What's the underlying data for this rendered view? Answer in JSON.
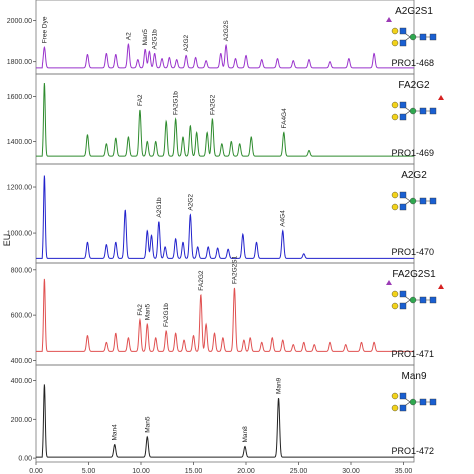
{
  "chart_data": {
    "type": "line",
    "title": "",
    "xlabel": "",
    "ylabel": "EU",
    "xlim": [
      0.0,
      36.0
    ],
    "x_ticks": [
      "0.00",
      "5.00",
      "10.00",
      "15.00",
      "20.00",
      "25.00",
      "30.00",
      "35.00"
    ],
    "x_tick_values": [
      0,
      5,
      10,
      15,
      20,
      25,
      30,
      35
    ],
    "grid": false,
    "panels": [
      {
        "sample": "PRO1-468",
        "glycan": "A2G2S1",
        "color": "#9933cc",
        "y_ticks": [
          "1800.00",
          "2000.00"
        ],
        "y_tick_values": [
          1800,
          2000
        ],
        "ylim": [
          1740,
          2100
        ],
        "baseline": 1770,
        "peaks": [
          {
            "x": 0.8,
            "y": 1870,
            "w": 0.1,
            "label": "Free Dye"
          },
          {
            "x": 4.9,
            "y": 1835,
            "w": 0.1
          },
          {
            "x": 6.7,
            "y": 1840,
            "w": 0.1
          },
          {
            "x": 7.6,
            "y": 1835,
            "w": 0.1
          },
          {
            "x": 8.8,
            "y": 1885,
            "w": 0.1,
            "label": "A2"
          },
          {
            "x": 9.7,
            "y": 1810,
            "w": 0.1
          },
          {
            "x": 10.4,
            "y": 1860,
            "w": 0.1,
            "label": "Man5"
          },
          {
            "x": 10.8,
            "y": 1850,
            "w": 0.1
          },
          {
            "x": 11.3,
            "y": 1840,
            "w": 0.1,
            "label": "A2G1b"
          },
          {
            "x": 12.0,
            "y": 1815,
            "w": 0.1
          },
          {
            "x": 12.7,
            "y": 1820,
            "w": 0.1
          },
          {
            "x": 13.4,
            "y": 1810,
            "w": 0.1
          },
          {
            "x": 14.3,
            "y": 1830,
            "w": 0.1,
            "label": "A2G2"
          },
          {
            "x": 15.2,
            "y": 1820,
            "w": 0.1
          },
          {
            "x": 16.2,
            "y": 1805,
            "w": 0.1
          },
          {
            "x": 17.6,
            "y": 1840,
            "w": 0.1
          },
          {
            "x": 18.1,
            "y": 1880,
            "w": 0.1,
            "label": "A2G2S"
          },
          {
            "x": 19.0,
            "y": 1815,
            "w": 0.1
          },
          {
            "x": 20.0,
            "y": 1830,
            "w": 0.1
          },
          {
            "x": 21.5,
            "y": 1810,
            "w": 0.1
          },
          {
            "x": 23.0,
            "y": 1815,
            "w": 0.1
          },
          {
            "x": 24.5,
            "y": 1805,
            "w": 0.1
          },
          {
            "x": 26.0,
            "y": 1810,
            "w": 0.1
          },
          {
            "x": 28.0,
            "y": 1800,
            "w": 0.1
          },
          {
            "x": 29.8,
            "y": 1815,
            "w": 0.1
          },
          {
            "x": 32.2,
            "y": 1840,
            "w": 0.1
          }
        ]
      },
      {
        "sample": "PRO1-469",
        "glycan": "FA2G2",
        "color": "#2e8b2e",
        "y_ticks": [
          "1400.00",
          "1600.00"
        ],
        "y_tick_values": [
          1400,
          1600
        ],
        "ylim": [
          1300,
          1700
        ],
        "baseline": 1335,
        "peaks": [
          {
            "x": 0.8,
            "y": 1660,
            "w": 0.08
          },
          {
            "x": 4.9,
            "y": 1430,
            "w": 0.1
          },
          {
            "x": 6.7,
            "y": 1390,
            "w": 0.1
          },
          {
            "x": 7.6,
            "y": 1415,
            "w": 0.1
          },
          {
            "x": 8.8,
            "y": 1420,
            "w": 0.1
          },
          {
            "x": 9.9,
            "y": 1540,
            "w": 0.1,
            "label": "FA2"
          },
          {
            "x": 10.6,
            "y": 1400,
            "w": 0.1
          },
          {
            "x": 11.4,
            "y": 1400,
            "w": 0.1
          },
          {
            "x": 12.4,
            "y": 1490,
            "w": 0.1
          },
          {
            "x": 13.3,
            "y": 1500,
            "w": 0.1,
            "label": "FA2G1b"
          },
          {
            "x": 14.0,
            "y": 1420,
            "w": 0.1
          },
          {
            "x": 14.7,
            "y": 1470,
            "w": 0.1
          },
          {
            "x": 15.3,
            "y": 1440,
            "w": 0.1
          },
          {
            "x": 16.3,
            "y": 1440,
            "w": 0.1
          },
          {
            "x": 16.8,
            "y": 1500,
            "w": 0.1,
            "label": "FA2G2"
          },
          {
            "x": 17.7,
            "y": 1390,
            "w": 0.1
          },
          {
            "x": 18.6,
            "y": 1400,
            "w": 0.1
          },
          {
            "x": 19.4,
            "y": 1390,
            "w": 0.1
          },
          {
            "x": 20.5,
            "y": 1420,
            "w": 0.1
          },
          {
            "x": 23.6,
            "y": 1440,
            "w": 0.1,
            "label": "FA4G4"
          },
          {
            "x": 26.0,
            "y": 1360,
            "w": 0.1
          }
        ]
      },
      {
        "sample": "PRO1-470",
        "glycan": "A2G2",
        "color": "#2222cc",
        "y_ticks": [
          "1000.00",
          "1200.00"
        ],
        "y_tick_values": [
          1000,
          1200
        ],
        "ylim": [
          870,
          1300
        ],
        "baseline": 890,
        "peaks": [
          {
            "x": 0.8,
            "y": 1250,
            "w": 0.08
          },
          {
            "x": 4.9,
            "y": 960,
            "w": 0.1
          },
          {
            "x": 6.7,
            "y": 950,
            "w": 0.1
          },
          {
            "x": 7.6,
            "y": 960,
            "w": 0.1
          },
          {
            "x": 8.5,
            "y": 1100,
            "w": 0.1
          },
          {
            "x": 10.6,
            "y": 1010,
            "w": 0.1
          },
          {
            "x": 11.0,
            "y": 990,
            "w": 0.1
          },
          {
            "x": 11.7,
            "y": 1050,
            "w": 0.1,
            "label": "A2G1b"
          },
          {
            "x": 12.3,
            "y": 940,
            "w": 0.1
          },
          {
            "x": 13.3,
            "y": 975,
            "w": 0.1
          },
          {
            "x": 14.0,
            "y": 960,
            "w": 0.1
          },
          {
            "x": 14.7,
            "y": 1080,
            "w": 0.1,
            "label": "A2G2"
          },
          {
            "x": 15.4,
            "y": 940,
            "w": 0.1
          },
          {
            "x": 16.4,
            "y": 940,
            "w": 0.1
          },
          {
            "x": 17.3,
            "y": 935,
            "w": 0.1
          },
          {
            "x": 18.3,
            "y": 930,
            "w": 0.1
          },
          {
            "x": 19.7,
            "y": 995,
            "w": 0.1
          },
          {
            "x": 21.0,
            "y": 960,
            "w": 0.1
          },
          {
            "x": 23.5,
            "y": 1010,
            "w": 0.1,
            "label": "A4G4"
          },
          {
            "x": 25.5,
            "y": 910,
            "w": 0.1
          }
        ]
      },
      {
        "sample": "PRO1-471",
        "glycan": "FA2G2S1",
        "color": "#e05050",
        "y_ticks": [
          "400.00",
          "600.00",
          "800.00"
        ],
        "y_tick_values": [
          400,
          600,
          800
        ],
        "ylim": [
          380,
          830
        ],
        "baseline": 440,
        "peaks": [
          {
            "x": 0.8,
            "y": 760,
            "w": 0.08
          },
          {
            "x": 4.9,
            "y": 510,
            "w": 0.1
          },
          {
            "x": 6.7,
            "y": 480,
            "w": 0.1
          },
          {
            "x": 7.6,
            "y": 520,
            "w": 0.1
          },
          {
            "x": 8.8,
            "y": 500,
            "w": 0.1
          },
          {
            "x": 9.9,
            "y": 580,
            "w": 0.1,
            "label": "FA2"
          },
          {
            "x": 10.6,
            "y": 560,
            "w": 0.1,
            "label": "Man5"
          },
          {
            "x": 11.4,
            "y": 500,
            "w": 0.1
          },
          {
            "x": 12.4,
            "y": 530,
            "w": 0.1,
            "label": "FA2G1b"
          },
          {
            "x": 13.3,
            "y": 520,
            "w": 0.1
          },
          {
            "x": 14.1,
            "y": 490,
            "w": 0.1
          },
          {
            "x": 15.0,
            "y": 510,
            "w": 0.1
          },
          {
            "x": 15.7,
            "y": 690,
            "w": 0.1,
            "label": "FA2G2"
          },
          {
            "x": 16.2,
            "y": 560,
            "w": 0.1
          },
          {
            "x": 17.0,
            "y": 520,
            "w": 0.1
          },
          {
            "x": 17.8,
            "y": 500,
            "w": 0.1
          },
          {
            "x": 18.9,
            "y": 720,
            "w": 0.1,
            "label": "FA2G2S1"
          },
          {
            "x": 19.8,
            "y": 490,
            "w": 0.1
          },
          {
            "x": 20.4,
            "y": 500,
            "w": 0.1
          },
          {
            "x": 21.5,
            "y": 480,
            "w": 0.1
          },
          {
            "x": 22.5,
            "y": 500,
            "w": 0.1
          },
          {
            "x": 23.5,
            "y": 490,
            "w": 0.1
          },
          {
            "x": 24.5,
            "y": 470,
            "w": 0.1
          },
          {
            "x": 25.5,
            "y": 480,
            "w": 0.1
          },
          {
            "x": 26.5,
            "y": 470,
            "w": 0.1
          },
          {
            "x": 28.0,
            "y": 480,
            "w": 0.1
          },
          {
            "x": 29.5,
            "y": 470,
            "w": 0.1
          },
          {
            "x": 31.0,
            "y": 480,
            "w": 0.1
          },
          {
            "x": 32.2,
            "y": 480,
            "w": 0.1
          }
        ]
      },
      {
        "sample": "PRO1-472",
        "glycan": "Man9",
        "color": "#222222",
        "y_ticks": [
          "0.00",
          "200.00",
          "400.00"
        ],
        "y_tick_values": [
          0,
          200,
          400
        ],
        "ylim": [
          -20,
          480
        ],
        "baseline": 5,
        "peaks": [
          {
            "x": 0.8,
            "y": 380,
            "w": 0.08
          },
          {
            "x": 7.5,
            "y": 70,
            "w": 0.1,
            "label": "Man4"
          },
          {
            "x": 10.6,
            "y": 110,
            "w": 0.1,
            "label": "Man5"
          },
          {
            "x": 19.9,
            "y": 60,
            "w": 0.1,
            "label": "Man8"
          },
          {
            "x": 23.1,
            "y": 310,
            "w": 0.1,
            "label": "Man9"
          }
        ]
      }
    ]
  }
}
